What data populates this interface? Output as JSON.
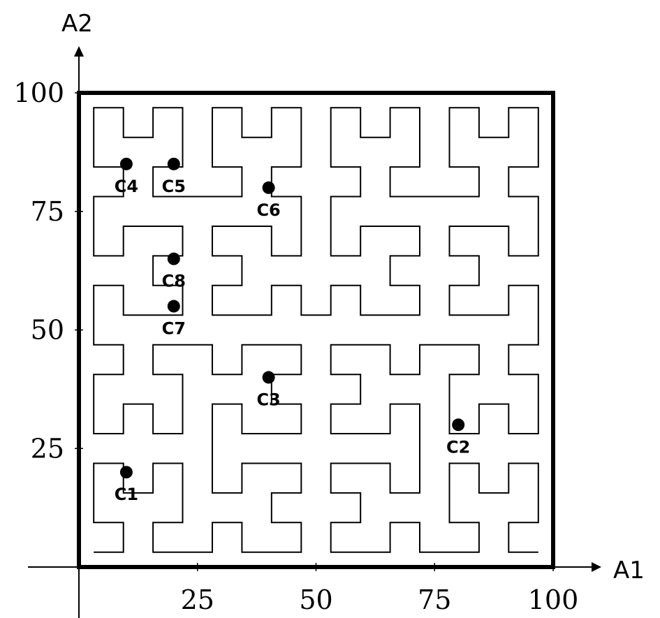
{
  "chart_data": {
    "type": "scatter",
    "x_axis_label": "A1",
    "y_axis_label": "A2",
    "xlim": [
      0,
      100
    ],
    "ylim": [
      0,
      100
    ],
    "x_ticks": [
      "25",
      "50",
      "75",
      "100"
    ],
    "y_ticks": [
      "100",
      "75",
      "50",
      "25"
    ],
    "points": [
      {
        "label": "C1",
        "x": 10,
        "y": 20
      },
      {
        "label": "C2",
        "x": 80,
        "y": 30
      },
      {
        "label": "C3",
        "x": 40,
        "y": 40
      },
      {
        "label": "C4",
        "x": 10,
        "y": 85
      },
      {
        "label": "C5",
        "x": 20,
        "y": 85
      },
      {
        "label": "C6",
        "x": 40,
        "y": 80
      },
      {
        "label": "C7",
        "x": 20,
        "y": 55
      },
      {
        "label": "C8",
        "x": 20,
        "y": 65
      }
    ],
    "colors": {
      "line": "#000000",
      "point": "#000000",
      "background": "#ffffff"
    }
  }
}
